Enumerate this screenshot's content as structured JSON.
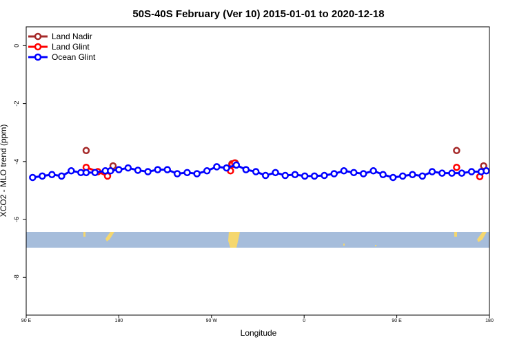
{
  "chart_data": {
    "type": "line",
    "title": "50S-40S February (Ver 10)   2015-01-01 to 2020-12-18",
    "xlabel": "Longitude",
    "ylabel": "XCO2 - MLO trend (ppm)",
    "xlim": [
      -90,
      270
    ],
    "ylim": [
      -9.3,
      0.65
    ],
    "x_ticks": [
      {
        "value": -90,
        "label": "90 E"
      },
      {
        "value": -18,
        "label": "180"
      },
      {
        "value": 54,
        "label": "90 W"
      },
      {
        "value": 126,
        "label": "0"
      },
      {
        "value": 198,
        "label": "90 E"
      },
      {
        "value": 270,
        "label": "180"
      }
    ],
    "y_ticks": [
      0,
      -2,
      -4,
      -6,
      -8
    ],
    "grid": false,
    "legend_position": "top-left",
    "colors": {
      "land_nadir": "#a52a2a",
      "land_glint": "#ff0000",
      "ocean_glint": "#0000ff",
      "ocean_band": "#a6bddb",
      "land_band": "#f5d76e"
    },
    "series": [
      {
        "name": "Land Nadir",
        "color": "#a52a2a",
        "segments": [
          {
            "x": [
              -43.4
            ],
            "y": [
              -3.62
            ]
          },
          {
            "x": [
              -22.5
            ],
            "y": [
              -4.15
            ]
          },
          {
            "x": [
              69.8
            ],
            "y": [
              -4.08
            ]
          },
          {
            "x": [
              72.5
            ],
            "y": [
              -4.05
            ]
          },
          {
            "x": [
              244.5
            ],
            "y": [
              -3.62
            ]
          },
          {
            "x": [
              265.5
            ],
            "y": [
              -4.15
            ]
          }
        ]
      },
      {
        "name": "Land Glint",
        "color": "#ff0000",
        "segments": [
          {
            "x": [
              -43.4,
              -34.3,
              -26.8
            ],
            "y": [
              -4.2,
              -4.35,
              -4.5
            ]
          },
          {
            "x": [
              68.8,
              70.2,
              72.0
            ],
            "y": [
              -4.32,
              -4.1,
              -4.05
            ]
          },
          {
            "x": [
              244.5
            ],
            "y": [
              -4.2
            ]
          },
          {
            "x": [
              262.5
            ],
            "y": [
              -4.52
            ]
          }
        ]
      },
      {
        "name": "Ocean Glint",
        "color": "#0000ff",
        "segments": [
          {
            "x": [
              -85.0,
              -77.5,
              -70.0,
              -62.5,
              -55.0,
              -47.5,
              -43.4,
              -36.5,
              -28.5,
              -24.5,
              -18.0,
              -10.8,
              -3.2,
              4.6,
              12.2,
              19.7,
              27.4,
              35.1,
              42.7,
              50.5,
              58.1,
              65.7,
              73.3,
              80.8,
              88.5,
              96.0,
              103.7,
              111.3,
              118.9,
              126.5,
              134.0,
              141.7,
              149.3,
              156.9,
              164.6,
              172.1,
              179.8,
              187.3,
              195.1,
              202.6,
              210.2,
              217.9,
              225.5,
              233.2,
              240.8,
              248.5,
              256.1,
              263.6,
              267.6
            ],
            "y": [
              -4.55,
              -4.5,
              -4.45,
              -4.5,
              -4.32,
              -4.38,
              -4.38,
              -4.38,
              -4.32,
              -4.32,
              -4.28,
              -4.22,
              -4.3,
              -4.35,
              -4.28,
              -4.28,
              -4.42,
              -4.38,
              -4.42,
              -4.32,
              -4.18,
              -4.22,
              -4.12,
              -4.28,
              -4.35,
              -4.48,
              -4.38,
              -4.48,
              -4.45,
              -4.5,
              -4.5,
              -4.48,
              -4.42,
              -4.32,
              -4.38,
              -4.42,
              -4.32,
              -4.45,
              -4.55,
              -4.5,
              -4.45,
              -4.5,
              -4.35,
              -4.4,
              -4.4,
              -4.4,
              -4.35,
              -4.35,
              -4.32
            ]
          }
        ]
      }
    ]
  }
}
